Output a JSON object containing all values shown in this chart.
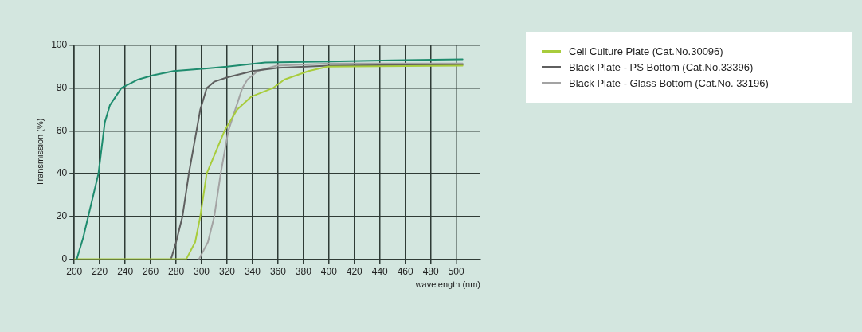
{
  "chart_data": {
    "type": "line",
    "xlabel": "wavelength (nm)",
    "ylabel": "Transmission (%)",
    "xlim": [
      200,
      519
    ],
    "xticks": [
      200,
      220,
      240,
      260,
      280,
      300,
      320,
      340,
      360,
      380,
      400,
      420,
      440,
      460,
      480,
      500
    ],
    "ylim": [
      0,
      100
    ],
    "yticks": [
      0,
      20,
      40,
      60,
      80,
      100
    ],
    "grid": true,
    "legend": "top right",
    "marker": "none",
    "line_style": "solid",
    "series": [
      {
        "color": "#1e8c6e",
        "x": [
          202,
          207,
          211,
          219,
          224,
          228,
          237,
          250,
          262,
          278,
          300,
          320,
          350,
          400,
          450,
          505
        ],
        "values": [
          0,
          10,
          20,
          40,
          64,
          72,
          80,
          84,
          86,
          88,
          89,
          90,
          92,
          92.5,
          93,
          93.5
        ]
      },
      {
        "name": "Cell Culture Plate (Cat.No.30096)",
        "color": "#a8cc3c",
        "x": [
          200,
          288,
          295,
          299,
          304,
          318,
          328,
          339,
          356,
          365,
          384,
          399,
          505
        ],
        "values": [
          0,
          0,
          8,
          20,
          40,
          60,
          70,
          76,
          80,
          84,
          88,
          90,
          90.5
        ]
      },
      {
        "name": "Black Plate - PS Bottom (Cat.No.33396)",
        "color": "#5f5f5f",
        "x": [
          276,
          280,
          285,
          290,
          296,
          299,
          304,
          310,
          320,
          330,
          340,
          360,
          400,
          505
        ],
        "values": [
          0,
          8,
          20,
          40,
          60,
          70,
          80,
          83,
          85,
          86.5,
          88,
          89.5,
          90.5,
          91
        ]
      },
      {
        "name": "Black Plate - Glass Bottom (Cat.No. 33196)",
        "color": "#a3a3a3",
        "x": [
          298,
          305,
          310,
          315,
          321,
          332,
          336,
          344,
          359,
          400,
          505
        ],
        "values": [
          0,
          8,
          20,
          40,
          60,
          80,
          84,
          88,
          90.5,
          91.5,
          91.5
        ]
      }
    ]
  }
}
